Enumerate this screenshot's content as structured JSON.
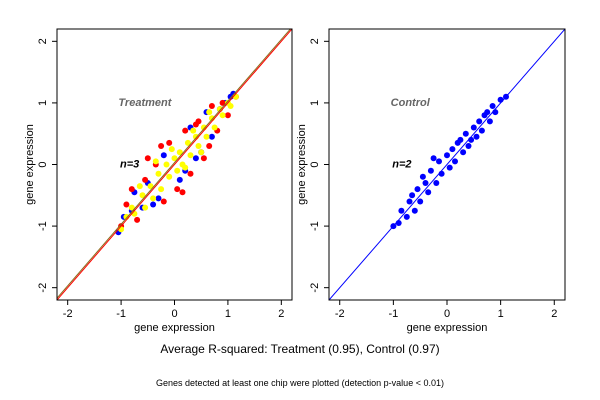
{
  "captions": {
    "main": "Average R-squared: Treatment (0.95), Control (0.97)",
    "sub": "Genes detected at least one chip were plotted (detection p-value < 0.01)"
  },
  "chart_data": [
    {
      "type": "scatter",
      "panel_label": "Treatment",
      "n_label": "n=3",
      "xlabel": "gene expression",
      "ylabel": "gene expression",
      "xlim": [
        -2.2,
        2.2
      ],
      "ylim": [
        -2.2,
        2.2
      ],
      "xticks": [
        -2,
        -1,
        0,
        1,
        2
      ],
      "yticks": [
        -2,
        -1,
        0,
        1,
        2
      ],
      "grid": false,
      "reference_lines": [
        {
          "color": "#ff0000",
          "slope": 1,
          "intercept": 0
        },
        {
          "color": "#8b6a1a",
          "slope": 1,
          "intercept": 0.03
        }
      ],
      "series": [
        {
          "color": "#0000ff",
          "points": [
            [
              -1.05,
              -1.1
            ],
            [
              -0.95,
              -0.85
            ],
            [
              -0.8,
              -0.75
            ],
            [
              -0.6,
              -0.7
            ],
            [
              -0.5,
              -0.3
            ],
            [
              -0.3,
              -0.55
            ],
            [
              -0.2,
              0.15
            ],
            [
              0.1,
              -0.25
            ],
            [
              0.3,
              0.6
            ],
            [
              0.4,
              0.1
            ],
            [
              0.6,
              0.85
            ],
            [
              0.7,
              0.45
            ],
            [
              0.85,
              0.9
            ],
            [
              0.95,
              1.0
            ],
            [
              1.05,
              1.1
            ],
            [
              1.1,
              1.15
            ],
            [
              -0.75,
              -0.45
            ],
            [
              0.2,
              -0.1
            ],
            [
              0.5,
              0.2
            ],
            [
              -0.4,
              -0.65
            ]
          ]
        },
        {
          "color": "#ff0000",
          "points": [
            [
              -1.0,
              -1.0
            ],
            [
              -0.9,
              -0.65
            ],
            [
              -0.7,
              -0.9
            ],
            [
              -0.55,
              -0.25
            ],
            [
              -0.35,
              0.0
            ],
            [
              -0.2,
              -0.6
            ],
            [
              -0.1,
              0.35
            ],
            [
              0.05,
              -0.4
            ],
            [
              0.2,
              0.55
            ],
            [
              0.3,
              -0.15
            ],
            [
              0.45,
              0.7
            ],
            [
              0.55,
              0.1
            ],
            [
              0.7,
              0.95
            ],
            [
              0.8,
              0.55
            ],
            [
              0.9,
              1.0
            ],
            [
              1.0,
              0.8
            ],
            [
              1.15,
              1.1
            ],
            [
              -0.5,
              0.1
            ],
            [
              -0.8,
              -0.4
            ],
            [
              0.65,
              0.3
            ],
            [
              -0.25,
              0.3
            ],
            [
              0.15,
              -0.45
            ],
            [
              0.4,
              0.65
            ]
          ]
        },
        {
          "color": "#ffff00",
          "points": [
            [
              -1.0,
              -1.05
            ],
            [
              -0.9,
              -0.85
            ],
            [
              -0.8,
              -0.7
            ],
            [
              -0.75,
              -0.8
            ],
            [
              -0.6,
              -0.5
            ],
            [
              -0.55,
              -0.7
            ],
            [
              -0.45,
              -0.35
            ],
            [
              -0.4,
              -0.55
            ],
            [
              -0.3,
              -0.15
            ],
            [
              -0.25,
              -0.4
            ],
            [
              -0.15,
              0.0
            ],
            [
              -0.1,
              -0.2
            ],
            [
              0.0,
              0.1
            ],
            [
              0.05,
              -0.1
            ],
            [
              0.1,
              0.2
            ],
            [
              0.15,
              0.0
            ],
            [
              0.25,
              0.35
            ],
            [
              0.3,
              0.15
            ],
            [
              0.4,
              0.45
            ],
            [
              0.45,
              0.3
            ],
            [
              0.55,
              0.6
            ],
            [
              0.6,
              0.45
            ],
            [
              0.7,
              0.75
            ],
            [
              0.75,
              0.6
            ],
            [
              0.85,
              0.9
            ],
            [
              0.9,
              0.8
            ],
            [
              1.0,
              1.0
            ],
            [
              1.05,
              0.95
            ],
            [
              1.15,
              1.1
            ],
            [
              -0.65,
              -0.35
            ],
            [
              -0.35,
              0.05
            ],
            [
              -0.05,
              0.25
            ],
            [
              0.2,
              -0.05
            ],
            [
              0.35,
              0.55
            ],
            [
              0.5,
              0.2
            ],
            [
              0.65,
              0.85
            ]
          ]
        }
      ]
    },
    {
      "type": "scatter",
      "panel_label": "Control",
      "n_label": "n=2",
      "xlabel": "gene expression",
      "ylabel": "gene expression",
      "xlim": [
        -2.2,
        2.2
      ],
      "ylim": [
        -2.2,
        2.2
      ],
      "xticks": [
        -2,
        -1,
        0,
        1,
        2
      ],
      "yticks": [
        -2,
        -1,
        0,
        1,
        2
      ],
      "grid": false,
      "reference_lines": [
        {
          "color": "#0000ff",
          "slope": 1,
          "intercept": 0
        }
      ],
      "series": [
        {
          "color": "#0000ff",
          "points": [
            [
              -1.0,
              -1.0
            ],
            [
              -0.9,
              -0.95
            ],
            [
              -0.85,
              -0.75
            ],
            [
              -0.75,
              -0.85
            ],
            [
              -0.7,
              -0.6
            ],
            [
              -0.6,
              -0.75
            ],
            [
              -0.55,
              -0.4
            ],
            [
              -0.5,
              -0.6
            ],
            [
              -0.4,
              -0.3
            ],
            [
              -0.35,
              -0.45
            ],
            [
              -0.3,
              -0.1
            ],
            [
              -0.2,
              -0.3
            ],
            [
              -0.15,
              0.05
            ],
            [
              -0.1,
              -0.15
            ],
            [
              0.0,
              0.15
            ],
            [
              0.05,
              -0.05
            ],
            [
              0.1,
              0.25
            ],
            [
              0.15,
              0.05
            ],
            [
              0.25,
              0.4
            ],
            [
              0.3,
              0.2
            ],
            [
              0.35,
              0.5
            ],
            [
              0.4,
              0.3
            ],
            [
              0.5,
              0.6
            ],
            [
              0.55,
              0.45
            ],
            [
              0.6,
              0.7
            ],
            [
              0.65,
              0.55
            ],
            [
              0.75,
              0.85
            ],
            [
              0.8,
              0.7
            ],
            [
              0.85,
              0.95
            ],
            [
              0.9,
              0.85
            ],
            [
              1.0,
              1.05
            ],
            [
              1.1,
              1.1
            ],
            [
              -0.65,
              -0.5
            ],
            [
              -0.45,
              -0.2
            ],
            [
              -0.25,
              0.1
            ],
            [
              0.2,
              0.35
            ],
            [
              0.45,
              0.4
            ],
            [
              0.7,
              0.8
            ]
          ]
        }
      ]
    }
  ]
}
